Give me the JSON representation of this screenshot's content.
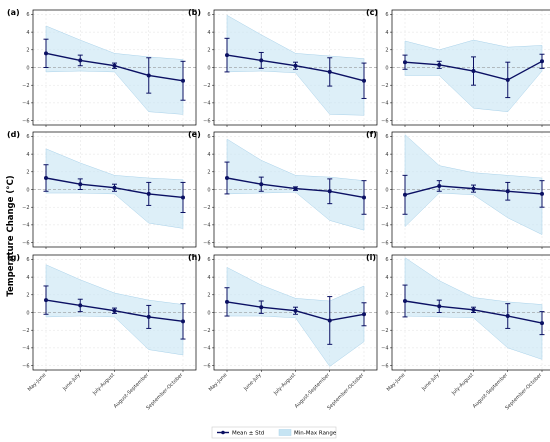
{
  "figure": {
    "ylabel": "Temperature Change (°C)",
    "legend": {
      "mean_label": "Mean ± Std",
      "range_label": "Min-Max Range"
    }
  },
  "colors": {
    "mean": "#0b1063",
    "range": "#c6e4f3",
    "range_edge": "#a9d2ea",
    "grid": "#e2e2e2"
  },
  "chart_data": [
    {
      "type": "line",
      "label": "(a)",
      "categories": [
        "May-June",
        "June-July",
        "July-August",
        "August-September",
        "September-October"
      ],
      "ylim": [
        -6.5,
        6.5
      ],
      "yticks": [
        -6,
        -4,
        -2,
        0,
        2,
        4,
        6
      ],
      "mean": [
        1.6,
        0.8,
        0.2,
        -0.9,
        -1.5
      ],
      "std": [
        1.6,
        0.6,
        0.3,
        2.0,
        2.2
      ],
      "min": [
        -0.5,
        -0.4,
        -0.5,
        -5.0,
        -5.3
      ],
      "max": [
        4.7,
        3.1,
        1.6,
        1.2,
        0.9
      ]
    },
    {
      "type": "line",
      "label": "(b)",
      "categories": [
        "May-June",
        "June-July",
        "July-August",
        "August-September",
        "September-October"
      ],
      "ylim": [
        -6.5,
        6.5
      ],
      "yticks": [
        -6,
        -4,
        -2,
        0,
        2,
        4,
        6
      ],
      "mean": [
        1.4,
        0.8,
        0.2,
        -0.5,
        -1.5
      ],
      "std": [
        1.9,
        0.9,
        0.4,
        1.6,
        2.0
      ],
      "min": [
        -0.5,
        -0.4,
        -0.6,
        -5.3,
        -5.4
      ],
      "max": [
        5.9,
        3.7,
        1.6,
        1.3,
        1.0
      ]
    },
    {
      "type": "line",
      "label": "(c)",
      "categories": [
        "May-June",
        "June-July",
        "July-August",
        "August-September",
        "September-October"
      ],
      "ylim": [
        -6.5,
        6.5
      ],
      "yticks": [
        -6,
        -4,
        -2,
        0,
        2,
        4,
        6
      ],
      "mean": [
        0.6,
        0.3,
        -0.4,
        -1.4,
        0.7
      ],
      "std": [
        0.8,
        0.4,
        1.6,
        2.0,
        0.8
      ],
      "min": [
        -0.9,
        -0.9,
        -4.6,
        -5.0,
        -0.4
      ],
      "max": [
        3.0,
        2.0,
        3.1,
        2.3,
        2.5
      ]
    },
    {
      "type": "line",
      "label": "(d)",
      "categories": [
        "May-June",
        "June-July",
        "July-August",
        "August-September",
        "September-October"
      ],
      "ylim": [
        -6.5,
        6.5
      ],
      "yticks": [
        -6,
        -4,
        -2,
        0,
        2,
        4,
        6
      ],
      "mean": [
        1.3,
        0.6,
        0.2,
        -0.5,
        -0.9
      ],
      "std": [
        1.5,
        0.6,
        0.4,
        1.3,
        1.7
      ],
      "min": [
        -0.4,
        -0.4,
        -0.5,
        -3.8,
        -4.4
      ],
      "max": [
        4.6,
        3.0,
        1.6,
        1.3,
        1.1
      ]
    },
    {
      "type": "line",
      "label": "(e)",
      "categories": [
        "May-June",
        "June-July",
        "July-August",
        "August-September",
        "September-October"
      ],
      "ylim": [
        -6.5,
        6.5
      ],
      "yticks": [
        -6,
        -4,
        -2,
        0,
        2,
        4,
        6
      ],
      "mean": [
        1.3,
        0.6,
        0.1,
        -0.2,
        -0.9
      ],
      "std": [
        1.8,
        0.8,
        0.2,
        1.4,
        1.9
      ],
      "min": [
        -0.5,
        -0.4,
        -0.3,
        -3.5,
        -4.6
      ],
      "max": [
        5.7,
        3.3,
        1.6,
        1.4,
        1.0
      ]
    },
    {
      "type": "line",
      "label": "(f)",
      "categories": [
        "May-June",
        "June-July",
        "July-August",
        "August-September",
        "September-October"
      ],
      "ylim": [
        -6.5,
        6.5
      ],
      "yticks": [
        -6,
        -4,
        -2,
        0,
        2,
        4,
        6
      ],
      "mean": [
        -0.6,
        0.4,
        0.1,
        -0.2,
        -0.5
      ],
      "std": [
        2.2,
        0.6,
        0.4,
        1.0,
        1.5
      ],
      "min": [
        -4.2,
        -0.4,
        -0.6,
        -3.2,
        -5.1
      ],
      "max": [
        6.2,
        2.7,
        1.9,
        1.6,
        1.3
      ]
    },
    {
      "type": "line",
      "label": "(g)",
      "categories": [
        "May-June",
        "June-July",
        "July-August",
        "August-September",
        "September-October"
      ],
      "ylim": [
        -6.5,
        6.5
      ],
      "yticks": [
        -6,
        -4,
        -2,
        0,
        2,
        4,
        6
      ],
      "mean": [
        1.4,
        0.8,
        0.2,
        -0.5,
        -1.0
      ],
      "std": [
        1.6,
        0.7,
        0.3,
        1.3,
        2.0
      ],
      "min": [
        -0.5,
        -0.4,
        -0.5,
        -4.2,
        -4.8
      ],
      "max": [
        5.4,
        3.7,
        2.2,
        1.4,
        0.9
      ]
    },
    {
      "type": "line",
      "label": "(h)",
      "categories": [
        "May-June",
        "June-July",
        "July-August",
        "August-September",
        "September-October"
      ],
      "ylim": [
        -6.5,
        6.5
      ],
      "yticks": [
        -6,
        -4,
        -2,
        0,
        2,
        4,
        6
      ],
      "mean": [
        1.2,
        0.6,
        0.2,
        -0.9,
        -0.2
      ],
      "std": [
        1.6,
        0.7,
        0.4,
        2.7,
        1.3
      ],
      "min": [
        -0.4,
        -0.4,
        -0.6,
        -6.1,
        -3.3
      ],
      "max": [
        5.1,
        3.1,
        1.6,
        1.3,
        3.0
      ]
    },
    {
      "type": "line",
      "label": "(i)",
      "categories": [
        "May-June",
        "June-July",
        "July-August",
        "August-September",
        "September-October"
      ],
      "ylim": [
        -6.5,
        6.5
      ],
      "yticks": [
        -6,
        -4,
        -2,
        0,
        2,
        4,
        6
      ],
      "mean": [
        1.3,
        0.7,
        0.3,
        -0.4,
        -1.2
      ],
      "std": [
        1.8,
        0.7,
        0.3,
        1.4,
        1.3
      ],
      "min": [
        -0.4,
        -0.5,
        -0.6,
        -4.0,
        -5.3
      ],
      "max": [
        6.2,
        3.6,
        1.7,
        1.2,
        0.9
      ]
    }
  ]
}
